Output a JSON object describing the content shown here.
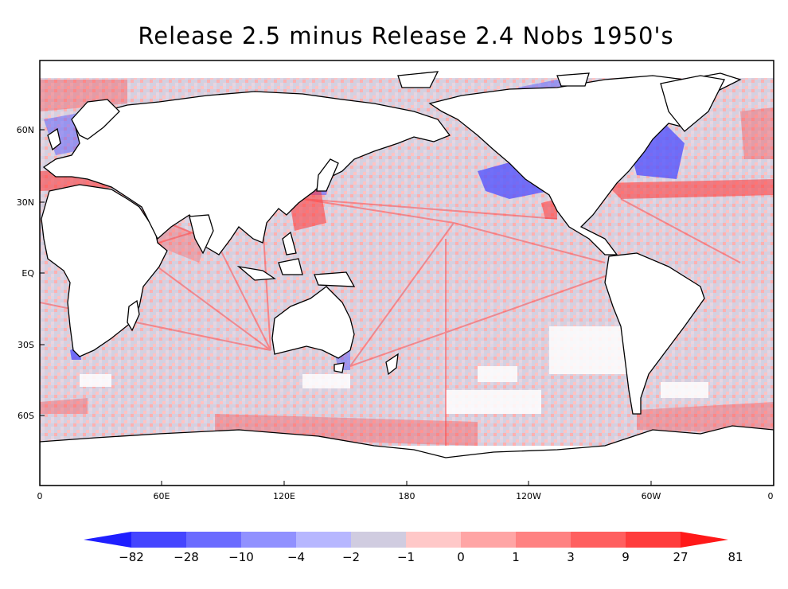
{
  "title": "Release 2.5 minus Release 2.4  Nobs 1950's",
  "lat_labels": [
    "60N",
    "30N",
    "EQ",
    "30S",
    "60S"
  ],
  "lon_labels": [
    "0",
    "60E",
    "120E",
    "180",
    "120W",
    "60W",
    "0"
  ],
  "colorbar": {
    "labels": [
      "-82",
      "-28",
      "-10",
      "-4",
      "-2",
      "-1",
      "0",
      "1",
      "3",
      "9",
      "27",
      "81"
    ],
    "colors": [
      "#1f1fff",
      "#4545ff",
      "#6b6bff",
      "#9191ff",
      "#b7b7ff",
      "#d0cce0",
      "#ffc8c8",
      "#ffa5a5",
      "#ff8282",
      "#ff5f5f",
      "#ff3c3c",
      "#ff1919"
    ]
  },
  "map": {
    "ocean_base": "#d4d0e0",
    "land": "#ffffff",
    "coast": "#000000",
    "positive": "#ff3333",
    "negative": "#3333ff"
  }
}
